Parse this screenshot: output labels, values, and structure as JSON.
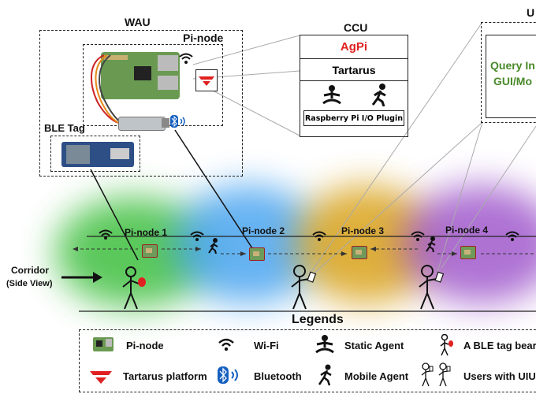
{
  "wau": {
    "title": "WAU",
    "pi_node_label": "Pi-node",
    "ble_tag_label": "BLE Tag"
  },
  "ccu": {
    "title": "CCU",
    "rows": [
      "AgPi",
      "Tartarus",
      "Raspberry Pi I/O Plugin"
    ],
    "accent": "#e02020"
  },
  "ui": {
    "title": "U",
    "line1": "Query In",
    "line2": "GUI/Mo",
    "color": "#4a8a2a"
  },
  "corridor": {
    "line1": "Corridor",
    "line2": "(Side View)"
  },
  "nodes": [
    "Pi-node 1",
    "Pi-node 2",
    "Pi-node 3",
    "Pi-node 4"
  ],
  "zone_colors": [
    "#3fbf3f",
    "#3f9fef",
    "#d9a21a",
    "#9a4fc9",
    "#c94fa9"
  ],
  "legends": {
    "title": "Legends",
    "items": [
      "Pi-node",
      "Wi-Fi",
      "Static Agent",
      "A BLE tag bear",
      "Tartarus platform",
      "Bluetooth",
      "Mobile Agent",
      "Users with UIU"
    ]
  },
  "icons": [
    "wifi-icon",
    "bluetooth-icon",
    "static-agent-icon",
    "mobile-agent-icon",
    "tartarus-logo-icon",
    "pi-board-icon",
    "person-icon"
  ]
}
